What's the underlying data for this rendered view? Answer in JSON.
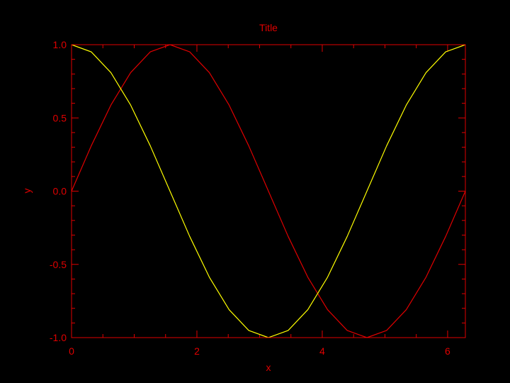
{
  "chart_data": {
    "type": "line",
    "title": "Title",
    "xlabel": "x",
    "ylabel": "y",
    "xlim": [
      0,
      6.2832
    ],
    "ylim": [
      -1.0,
      1.0
    ],
    "xticks": [
      0,
      2,
      4,
      6
    ],
    "xtick_labels": [
      "0",
      "2",
      "4",
      "6"
    ],
    "yticks": [
      -1.0,
      -0.5,
      0.0,
      0.5,
      1.0
    ],
    "ytick_labels": [
      "-1.0",
      "-0.5",
      "0.0",
      "0.5",
      "1.0"
    ],
    "grid": false,
    "legend": "none",
    "series": [
      {
        "color": "#e00000",
        "x": [
          0,
          0.3142,
          0.6283,
          0.9425,
          1.2566,
          1.5708,
          1.885,
          2.1991,
          2.5133,
          2.8274,
          3.1416,
          3.4558,
          3.7699,
          4.0841,
          4.3982,
          4.7124,
          5.0265,
          5.3407,
          5.6549,
          5.969,
          6.2832
        ],
        "y": [
          0.0,
          0.309,
          0.5878,
          0.809,
          0.9511,
          1.0,
          0.9511,
          0.809,
          0.5878,
          0.309,
          0.0,
          -0.309,
          -0.5878,
          -0.809,
          -0.9511,
          -1.0,
          -0.9511,
          -0.809,
          -0.5878,
          -0.309,
          0.0
        ]
      },
      {
        "color": "#ffff00",
        "x": [
          0,
          0.3142,
          0.6283,
          0.9425,
          1.2566,
          1.5708,
          1.885,
          2.1991,
          2.5133,
          2.8274,
          3.1416,
          3.4558,
          3.7699,
          4.0841,
          4.3982,
          4.7124,
          5.0265,
          5.3407,
          5.6549,
          5.969,
          6.2832
        ],
        "y": [
          1.0,
          0.9511,
          0.809,
          0.5878,
          0.309,
          0.0,
          -0.309,
          -0.5878,
          -0.809,
          -0.9511,
          -1.0,
          -0.9511,
          -0.809,
          -0.5878,
          -0.309,
          0.0,
          0.309,
          0.5878,
          0.809,
          0.9511,
          1.0
        ]
      }
    ],
    "colors": {
      "axis": "#e00000",
      "background": "#000000"
    }
  }
}
